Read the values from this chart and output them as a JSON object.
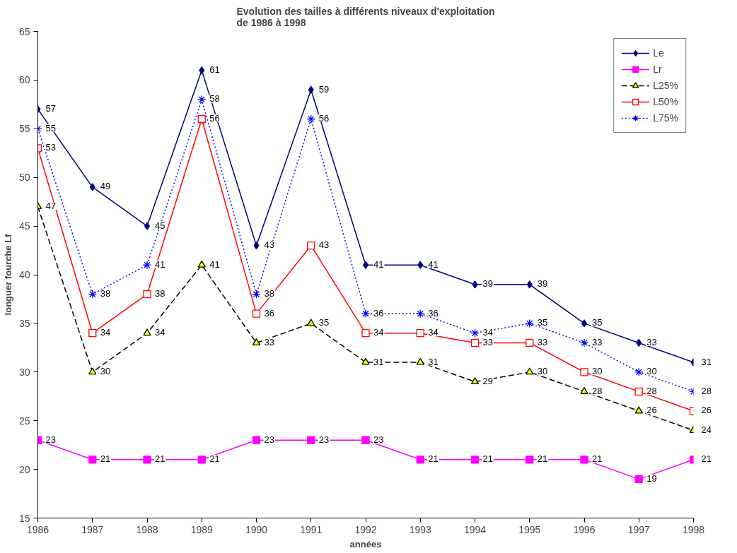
{
  "chart_data": {
    "type": "line",
    "title": "Evolution des tailles à différents niveaux d'exploitation\nde 1986 à 1998",
    "xlabel": "années",
    "ylabel": "longuer fourche Lf",
    "x": [
      1986,
      1987,
      1988,
      1989,
      1990,
      1991,
      1992,
      1993,
      1994,
      1995,
      1996,
      1997,
      1998
    ],
    "xlim": [
      1986,
      1998
    ],
    "xticks": [
      1986,
      1987,
      1988,
      1989,
      1990,
      1991,
      1992,
      1993,
      1994,
      1995,
      1996,
      1997,
      1998
    ],
    "ylim": [
      15,
      65
    ],
    "yticks": [
      15,
      20,
      25,
      30,
      35,
      40,
      45,
      50,
      55,
      60,
      65
    ],
    "grid": false,
    "legend": "top right",
    "data_labels": true,
    "series": [
      {
        "name": "Le",
        "color": "#000080",
        "marker": "diamond",
        "line_style": "solid",
        "values": [
          57,
          49,
          45,
          61,
          43,
          59,
          41,
          41,
          39,
          39,
          35,
          33,
          31
        ]
      },
      {
        "name": "Lr",
        "color": "#ff00ff",
        "marker": "square",
        "line_style": "solid",
        "values": [
          23,
          21,
          21,
          21,
          23,
          23,
          23,
          21,
          21,
          21,
          21,
          19,
          21
        ]
      },
      {
        "name": "L25%",
        "color": "#000000",
        "marker": "triangle",
        "line_style": "dashed",
        "values": [
          47,
          30,
          34,
          41,
          33,
          35,
          31,
          31,
          29,
          30,
          28,
          26,
          24
        ]
      },
      {
        "name": "L50%",
        "color": "#ff0000",
        "marker": "square",
        "line_style": "solid",
        "values": [
          53,
          34,
          38,
          56,
          36,
          43,
          34,
          34,
          33,
          33,
          30,
          28,
          26
        ]
      },
      {
        "name": "L75%",
        "color": "#0000ff",
        "marker": "cross",
        "line_style": "dotted",
        "values": [
          55,
          38,
          41,
          58,
          38,
          56,
          36,
          36,
          34,
          35,
          33,
          30,
          28
        ]
      }
    ]
  }
}
